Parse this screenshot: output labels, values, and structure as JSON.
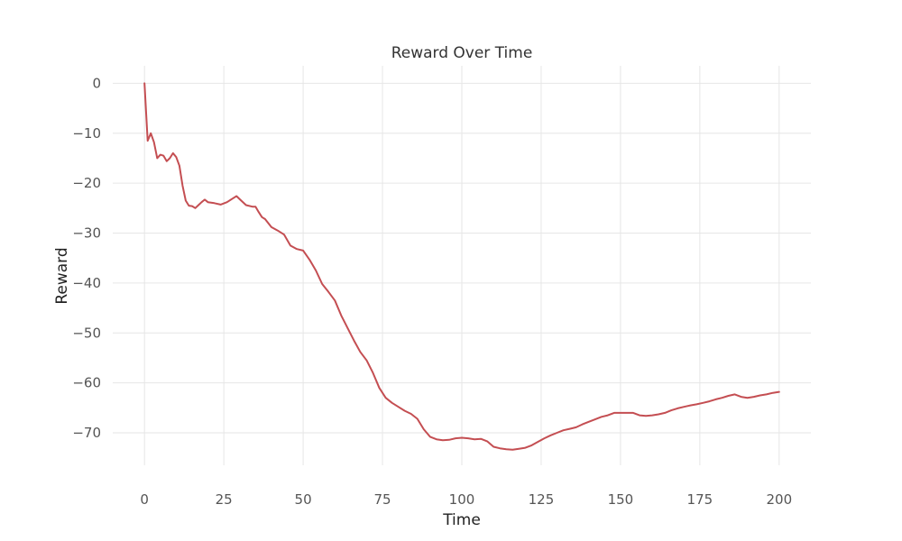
{
  "chart_data": {
    "type": "line",
    "title": "Reward Over Time",
    "xlabel": "Time",
    "ylabel": "Reward",
    "xlim": [
      -10,
      210
    ],
    "ylim": [
      -76.5,
      3.5
    ],
    "xticks": [
      0,
      25,
      50,
      75,
      100,
      125,
      150,
      175,
      200
    ],
    "yticks": [
      0,
      -10,
      -20,
      -30,
      -40,
      -50,
      -60,
      -70
    ],
    "grid": true,
    "legend": "none",
    "series": [
      {
        "color": "#c44e52",
        "x": [
          0,
          1,
          2,
          3,
          4,
          5,
          6,
          7,
          8,
          9,
          10,
          11,
          12,
          13,
          14,
          15,
          16,
          17,
          18,
          19,
          20,
          22,
          24,
          26,
          28,
          29,
          30,
          32,
          34,
          35,
          36,
          37,
          38,
          40,
          42,
          44,
          46,
          48,
          50,
          52,
          54,
          56,
          58,
          60,
          62,
          64,
          66,
          68,
          70,
          72,
          74,
          76,
          78,
          80,
          82,
          84,
          86,
          88,
          90,
          92,
          94,
          96,
          98,
          100,
          102,
          104,
          106,
          108,
          110,
          112,
          114,
          116,
          118,
          120,
          122,
          124,
          126,
          128,
          130,
          132,
          134,
          136,
          138,
          140,
          142,
          144,
          146,
          148,
          150,
          152,
          154,
          156,
          158,
          160,
          162,
          164,
          166,
          168,
          170,
          172,
          174,
          176,
          178,
          180,
          182,
          184,
          186,
          188,
          190,
          192,
          194,
          196,
          198,
          200
        ],
        "values": [
          0,
          -11.5,
          -10.0,
          -11.8,
          -15.0,
          -14.3,
          -14.5,
          -15.6,
          -15.0,
          -14.0,
          -14.8,
          -16.5,
          -20.5,
          -23.5,
          -24.5,
          -24.6,
          -25.0,
          -24.4,
          -23.8,
          -23.3,
          -23.8,
          -24.0,
          -24.3,
          -23.8,
          -23.0,
          -22.6,
          -23.2,
          -24.4,
          -24.7,
          -24.7,
          -25.8,
          -26.8,
          -27.2,
          -28.8,
          -29.5,
          -30.3,
          -32.5,
          -33.2,
          -33.5,
          -35.3,
          -37.5,
          -40.2,
          -41.8,
          -43.5,
          -46.5,
          -49.0,
          -51.5,
          -53.8,
          -55.5,
          -58.0,
          -61.0,
          -63.0,
          -64.0,
          -64.8,
          -65.6,
          -66.2,
          -67.2,
          -69.3,
          -70.8,
          -71.3,
          -71.5,
          -71.4,
          -71.1,
          -71.0,
          -71.1,
          -71.3,
          -71.2,
          -71.7,
          -72.8,
          -73.1,
          -73.3,
          -73.4,
          -73.2,
          -73.0,
          -72.5,
          -71.8,
          -71.1,
          -70.5,
          -70.0,
          -69.5,
          -69.2,
          -68.9,
          -68.3,
          -67.8,
          -67.3,
          -66.8,
          -66.5,
          -66.0,
          -66.0,
          -66.0,
          -66.0,
          -66.5,
          -66.6,
          -66.5,
          -66.3,
          -66.0,
          -65.5,
          -65.1,
          -64.8,
          -64.5,
          -64.3,
          -64.0,
          -63.7,
          -63.3,
          -63.0,
          -62.6,
          -62.3,
          -62.8,
          -63.0,
          -62.8,
          -62.5,
          -62.3,
          -62.0,
          -61.8
        ]
      }
    ]
  }
}
